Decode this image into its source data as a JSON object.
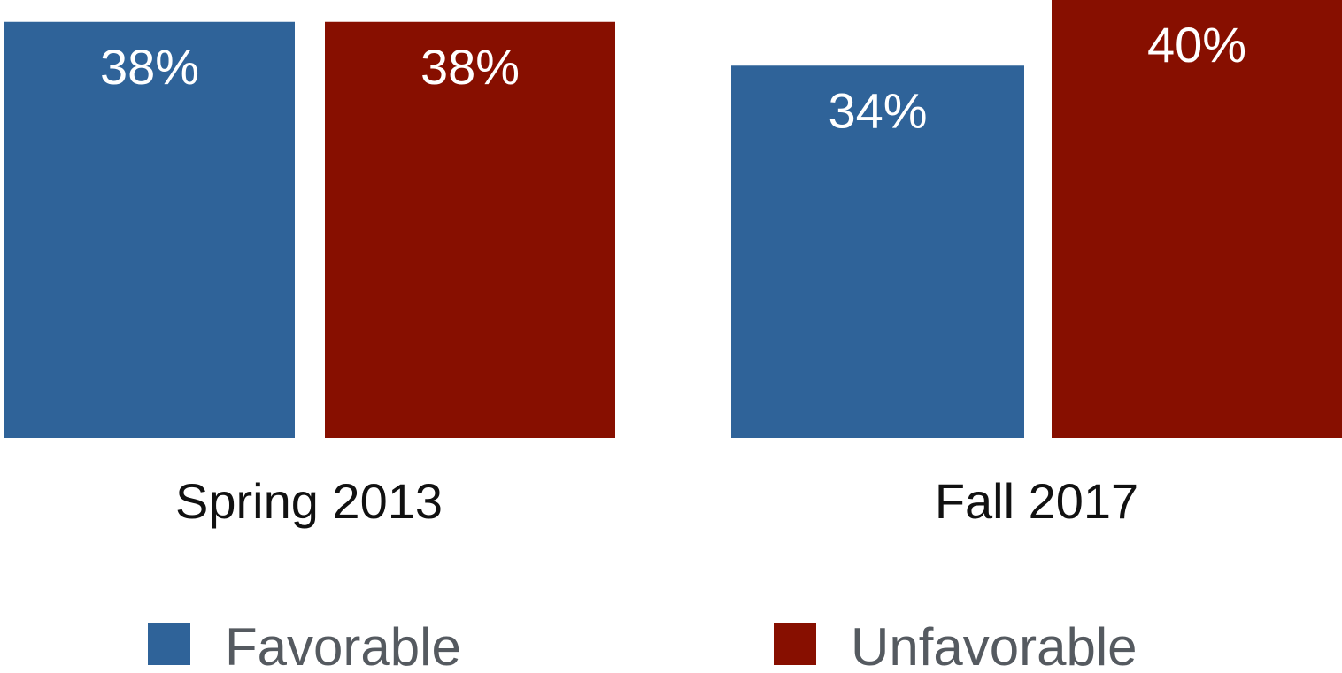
{
  "chart_data": {
    "type": "bar",
    "categories": [
      "Spring 2013",
      "Fall 2017"
    ],
    "series": [
      {
        "name": "Favorable",
        "color": "#2f6399",
        "values": [
          38,
          34
        ],
        "labels": [
          "38%",
          "34%"
        ]
      },
      {
        "name": "Unfavorable",
        "color": "#870f00",
        "values": [
          38,
          40
        ],
        "labels": [
          "38%",
          "40%"
        ]
      }
    ],
    "title": "",
    "xlabel": "",
    "ylabel": "",
    "ylim": [
      0,
      40
    ],
    "grid": false,
    "legend_position": "bottom"
  }
}
